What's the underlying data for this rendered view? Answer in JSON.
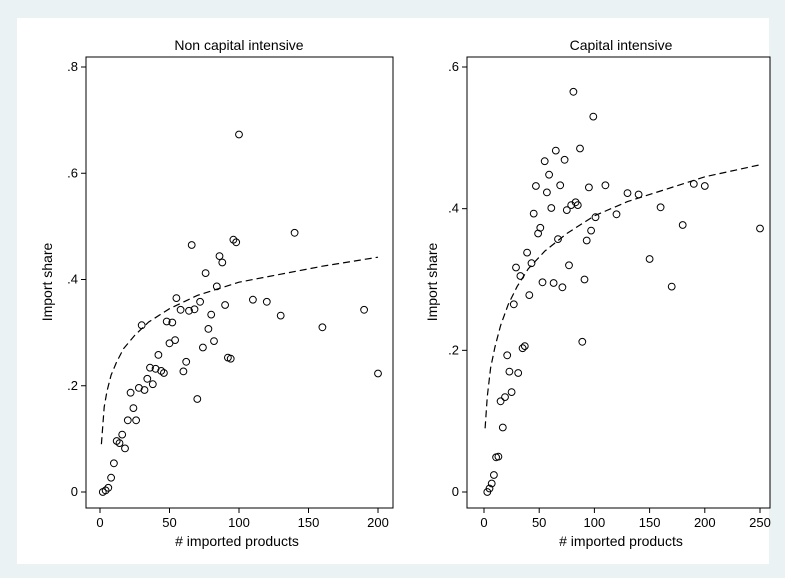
{
  "chart_data": [
    {
      "type": "scatter",
      "title": "Non capital intensive",
      "xlabel": "# imported products",
      "ylabel": "Import share",
      "xlim": [
        0,
        200
      ],
      "ylim": [
        0,
        0.8
      ],
      "xticks": [
        0,
        50,
        100,
        150,
        200
      ],
      "xtick_labels": [
        "0",
        "50",
        "100",
        "150",
        "200"
      ],
      "yticks": [
        0,
        0.2,
        0.4,
        0.6,
        0.8
      ],
      "ytick_labels": [
        "0",
        ".2",
        ".4",
        ".6",
        ".8"
      ],
      "grid": false,
      "points": [
        [
          2,
          0.0
        ],
        [
          4,
          0.003
        ],
        [
          6,
          0.008
        ],
        [
          8,
          0.027
        ],
        [
          10,
          0.054
        ],
        [
          12,
          0.096
        ],
        [
          14,
          0.092
        ],
        [
          16,
          0.108
        ],
        [
          18,
          0.082
        ],
        [
          20,
          0.135
        ],
        [
          22,
          0.187
        ],
        [
          24,
          0.158
        ],
        [
          26,
          0.135
        ],
        [
          28,
          0.196
        ],
        [
          30,
          0.314
        ],
        [
          32,
          0.192
        ],
        [
          34,
          0.213
        ],
        [
          36,
          0.234
        ],
        [
          38,
          0.203
        ],
        [
          40,
          0.232
        ],
        [
          42,
          0.258
        ],
        [
          44,
          0.228
        ],
        [
          46,
          0.224
        ],
        [
          48,
          0.321
        ],
        [
          50,
          0.28
        ],
        [
          52,
          0.319
        ],
        [
          54,
          0.286
        ],
        [
          55,
          0.365
        ],
        [
          58,
          0.343
        ],
        [
          60,
          0.227
        ],
        [
          62,
          0.245
        ],
        [
          64,
          0.341
        ],
        [
          66,
          0.465
        ],
        [
          68,
          0.344
        ],
        [
          70,
          0.175
        ],
        [
          72,
          0.358
        ],
        [
          74,
          0.272
        ],
        [
          76,
          0.412
        ],
        [
          78,
          0.307
        ],
        [
          80,
          0.334
        ],
        [
          82,
          0.284
        ],
        [
          84,
          0.387
        ],
        [
          86,
          0.444
        ],
        [
          88,
          0.432
        ],
        [
          90,
          0.352
        ],
        [
          92,
          0.253
        ],
        [
          94,
          0.251
        ],
        [
          96,
          0.475
        ],
        [
          98,
          0.47
        ],
        [
          100,
          0.673
        ],
        [
          110,
          0.362
        ],
        [
          120,
          0.358
        ],
        [
          130,
          0.332
        ],
        [
          140,
          0.488
        ],
        [
          160,
          0.31
        ],
        [
          190,
          0.343
        ],
        [
          200,
          0.223
        ]
      ],
      "fit_line_style": "dashed",
      "fit_curve": [
        [
          1,
          0.09
        ],
        [
          3,
          0.16
        ],
        [
          5,
          0.19
        ],
        [
          8,
          0.22
        ],
        [
          12,
          0.245
        ],
        [
          17,
          0.27
        ],
        [
          25,
          0.295
        ],
        [
          35,
          0.32
        ],
        [
          50,
          0.345
        ],
        [
          70,
          0.37
        ],
        [
          100,
          0.395
        ],
        [
          130,
          0.41
        ],
        [
          160,
          0.425
        ],
        [
          200,
          0.442
        ]
      ]
    },
    {
      "type": "scatter",
      "title": "Capital intensive",
      "xlabel": "# imported products",
      "ylabel": "Import share",
      "xlim": [
        0,
        250
      ],
      "ylim": [
        0,
        0.6
      ],
      "xticks": [
        0,
        50,
        100,
        150,
        200,
        250
      ],
      "xtick_labels": [
        "0",
        "50",
        "100",
        "150",
        "200",
        "250"
      ],
      "yticks": [
        0,
        0.2,
        0.4,
        0.6
      ],
      "ytick_labels": [
        "0",
        ".2",
        ".4",
        ".6"
      ],
      "grid": false,
      "points": [
        [
          3,
          0.0
        ],
        [
          5,
          0.005
        ],
        [
          7,
          0.012
        ],
        [
          9,
          0.024
        ],
        [
          11,
          0.049
        ],
        [
          13,
          0.05
        ],
        [
          15,
          0.128
        ],
        [
          17,
          0.091
        ],
        [
          19,
          0.134
        ],
        [
          21,
          0.193
        ],
        [
          23,
          0.17
        ],
        [
          25,
          0.141
        ],
        [
          27,
          0.265
        ],
        [
          29,
          0.317
        ],
        [
          31,
          0.168
        ],
        [
          33,
          0.305
        ],
        [
          35,
          0.203
        ],
        [
          37,
          0.206
        ],
        [
          39,
          0.338
        ],
        [
          41,
          0.278
        ],
        [
          43,
          0.323
        ],
        [
          45,
          0.393
        ],
        [
          47,
          0.432
        ],
        [
          49,
          0.365
        ],
        [
          51,
          0.373
        ],
        [
          53,
          0.296
        ],
        [
          55,
          0.467
        ],
        [
          57,
          0.423
        ],
        [
          59,
          0.448
        ],
        [
          61,
          0.401
        ],
        [
          63,
          0.295
        ],
        [
          65,
          0.482
        ],
        [
          67,
          0.357
        ],
        [
          69,
          0.433
        ],
        [
          71,
          0.289
        ],
        [
          73,
          0.469
        ],
        [
          75,
          0.398
        ],
        [
          77,
          0.32
        ],
        [
          79,
          0.405
        ],
        [
          81,
          0.565
        ],
        [
          83,
          0.409
        ],
        [
          85,
          0.405
        ],
        [
          87,
          0.485
        ],
        [
          89,
          0.212
        ],
        [
          91,
          0.3
        ],
        [
          93,
          0.355
        ],
        [
          95,
          0.43
        ],
        [
          97,
          0.369
        ],
        [
          99,
          0.53
        ],
        [
          101,
          0.388
        ],
        [
          110,
          0.433
        ],
        [
          120,
          0.392
        ],
        [
          130,
          0.422
        ],
        [
          140,
          0.42
        ],
        [
          150,
          0.329
        ],
        [
          160,
          0.402
        ],
        [
          170,
          0.29
        ],
        [
          180,
          0.377
        ],
        [
          190,
          0.435
        ],
        [
          200,
          0.432
        ],
        [
          250,
          0.372
        ]
      ],
      "fit_line_style": "dashed",
      "fit_curve": [
        [
          1,
          0.09
        ],
        [
          3,
          0.135
        ],
        [
          6,
          0.175
        ],
        [
          10,
          0.205
        ],
        [
          15,
          0.235
        ],
        [
          22,
          0.265
        ],
        [
          30,
          0.29
        ],
        [
          40,
          0.315
        ],
        [
          55,
          0.34
        ],
        [
          75,
          0.365
        ],
        [
          100,
          0.39
        ],
        [
          130,
          0.41
        ],
        [
          160,
          0.425
        ],
        [
          200,
          0.445
        ],
        [
          250,
          0.462
        ]
      ]
    }
  ]
}
